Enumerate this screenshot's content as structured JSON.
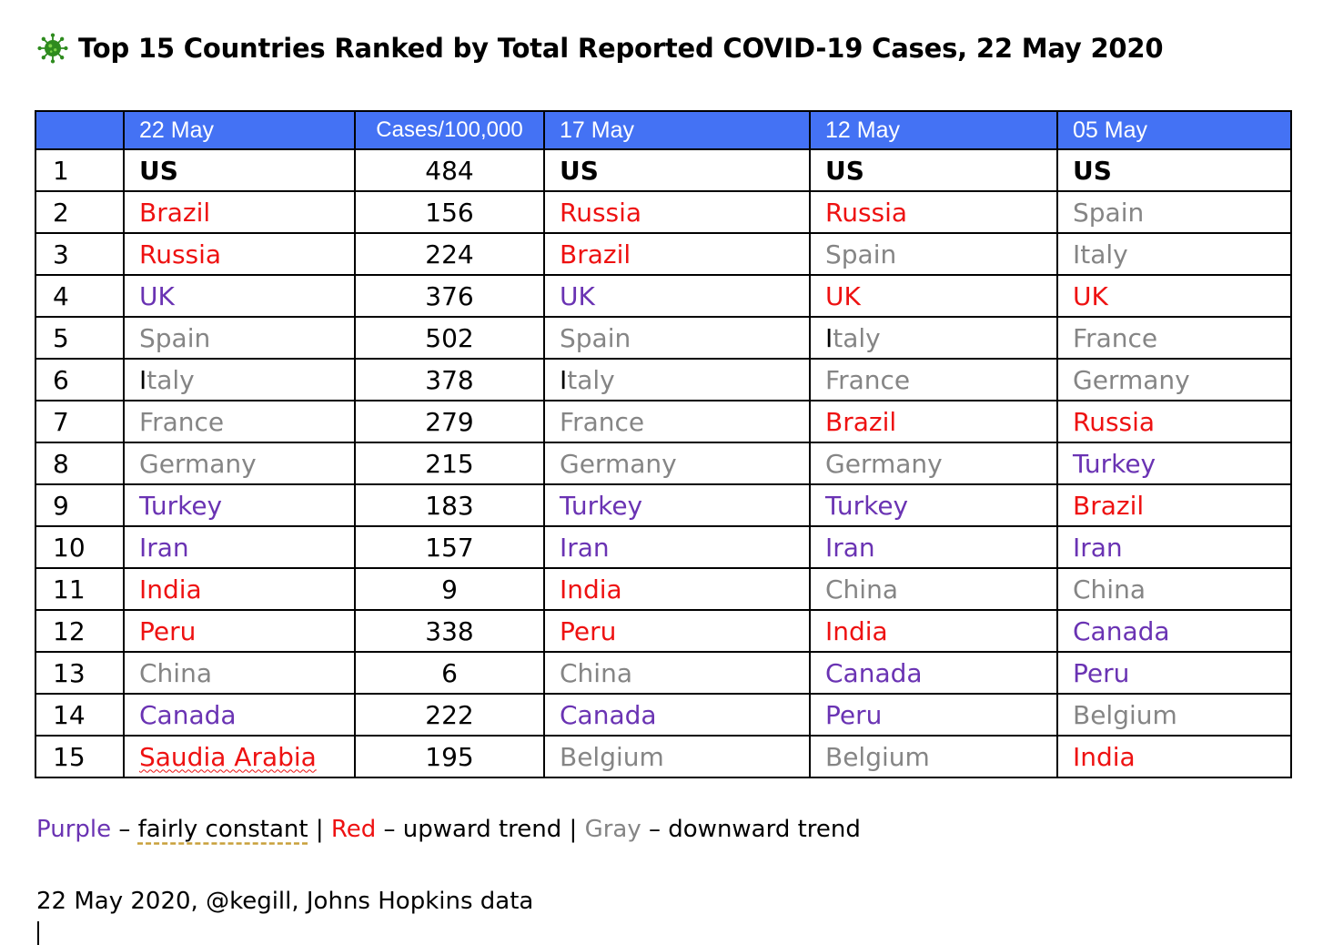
{
  "title": "Top 15 Countries Ranked by Total Reported COVID-19 Cases, 22 May 2020",
  "title_icon": "virus-icon",
  "colors": {
    "header_bg": "#4472f4",
    "red": "#ee1111",
    "purple": "#6a33b3",
    "gray": "#858585",
    "black": "#000000"
  },
  "table": {
    "headers": [
      "",
      "22 May",
      "Cases/100,000",
      "17 May",
      "12 May",
      "05 May"
    ],
    "rows": [
      {
        "rank": "1",
        "may22": {
          "text": "US",
          "color": "black",
          "bold": true
        },
        "cases": "484",
        "may17": {
          "text": "US",
          "color": "black",
          "bold": true
        },
        "may12": {
          "text": "US",
          "color": "black",
          "bold": true
        },
        "may05": {
          "text": "US",
          "color": "black",
          "bold": true
        }
      },
      {
        "rank": "2",
        "may22": {
          "text": "Brazil",
          "color": "red"
        },
        "cases": "156",
        "may17": {
          "text": "Russia",
          "color": "red"
        },
        "may12": {
          "text": "Russia",
          "color": "red"
        },
        "may05": {
          "text": "Spain",
          "color": "gray"
        }
      },
      {
        "rank": "3",
        "may22": {
          "text": "Russia",
          "color": "red"
        },
        "cases": "224",
        "may17": {
          "text": "Brazil",
          "color": "red"
        },
        "may12": {
          "text": "Spain",
          "color": "gray"
        },
        "may05": {
          "text": "Italy",
          "color": "gray"
        }
      },
      {
        "rank": "4",
        "may22": {
          "text": "UK",
          "color": "purple"
        },
        "cases": "376",
        "may17": {
          "text": "UK",
          "color": "purple"
        },
        "may12": {
          "text": "UK",
          "color": "red"
        },
        "may05": {
          "text": "UK",
          "color": "red"
        }
      },
      {
        "rank": "5",
        "may22": {
          "text": "Spain",
          "color": "gray"
        },
        "cases": "502",
        "may17": {
          "text": "Spain",
          "color": "gray"
        },
        "may12": {
          "text": "Italy",
          "color": "gray",
          "first_black": true
        },
        "may05": {
          "text": "France",
          "color": "gray"
        }
      },
      {
        "rank": "6",
        "may22": {
          "text": "Italy",
          "color": "gray",
          "first_black": true
        },
        "cases": "378",
        "may17": {
          "text": "Italy",
          "color": "gray",
          "first_black": true
        },
        "may12": {
          "text": "France",
          "color": "gray"
        },
        "may05": {
          "text": "Germany",
          "color": "gray"
        }
      },
      {
        "rank": "7",
        "may22": {
          "text": "France",
          "color": "gray"
        },
        "cases": "279",
        "may17": {
          "text": "France",
          "color": "gray"
        },
        "may12": {
          "text": "Brazil",
          "color": "red"
        },
        "may05": {
          "text": "Russia",
          "color": "red"
        }
      },
      {
        "rank": "8",
        "may22": {
          "text": "Germany",
          "color": "gray"
        },
        "cases": "215",
        "may17": {
          "text": "Germany",
          "color": "gray"
        },
        "may12": {
          "text": "Germany",
          "color": "gray"
        },
        "may05": {
          "text": "Turkey",
          "color": "purple"
        }
      },
      {
        "rank": "9",
        "may22": {
          "text": "Turkey",
          "color": "purple"
        },
        "cases": "183",
        "may17": {
          "text": "Turkey",
          "color": "purple"
        },
        "may12": {
          "text": "Turkey",
          "color": "purple"
        },
        "may05": {
          "text": "Brazil",
          "color": "red"
        }
      },
      {
        "rank": "10",
        "may22": {
          "text": "Iran",
          "color": "purple"
        },
        "cases": "157",
        "may17": {
          "text": "Iran",
          "color": "purple"
        },
        "may12": {
          "text": "Iran",
          "color": "purple"
        },
        "may05": {
          "text": "Iran",
          "color": "purple"
        }
      },
      {
        "rank": "11",
        "may22": {
          "text": "India",
          "color": "red"
        },
        "cases": "9",
        "may17": {
          "text": "India",
          "color": "red"
        },
        "may12": {
          "text": "China",
          "color": "gray"
        },
        "may05": {
          "text": "China",
          "color": "gray"
        }
      },
      {
        "rank": "12",
        "may22": {
          "text": "Peru",
          "color": "red"
        },
        "cases": "338",
        "may17": {
          "text": "Peru",
          "color": "red"
        },
        "may12": {
          "text": "India",
          "color": "red"
        },
        "may05": {
          "text": "Canada",
          "color": "purple"
        }
      },
      {
        "rank": "13",
        "may22": {
          "text": "China",
          "color": "gray"
        },
        "cases": "6",
        "may17": {
          "text": "China",
          "color": "gray"
        },
        "may12": {
          "text": "Canada",
          "color": "purple"
        },
        "may05": {
          "text": "Peru",
          "color": "purple"
        }
      },
      {
        "rank": "14",
        "may22": {
          "text": "Canada",
          "color": "purple"
        },
        "cases": "222",
        "may17": {
          "text": "Canada",
          "color": "purple"
        },
        "may12": {
          "text": "Peru",
          "color": "purple"
        },
        "may05": {
          "text": "Belgium",
          "color": "gray"
        }
      },
      {
        "rank": "15",
        "may22": {
          "text": "Saudia Arabia",
          "color": "red",
          "squiggle": true
        },
        "cases": "195",
        "may17": {
          "text": "Belgium",
          "color": "gray"
        },
        "may12": {
          "text": "Belgium",
          "color": "gray"
        },
        "may05": {
          "text": "India",
          "color": "red"
        }
      }
    ]
  },
  "legend": {
    "purple_label": "Purple",
    "purple_sep": " – ",
    "purple_desc": "fairly constant",
    "bar1": " | ",
    "red_label": "Red",
    "red_desc": " – upward trend",
    "bar2": " | ",
    "gray_label": "Gray",
    "gray_desc": " – downward trend"
  },
  "footer": "22 May 2020, @kegill, Johns Hopkins data"
}
